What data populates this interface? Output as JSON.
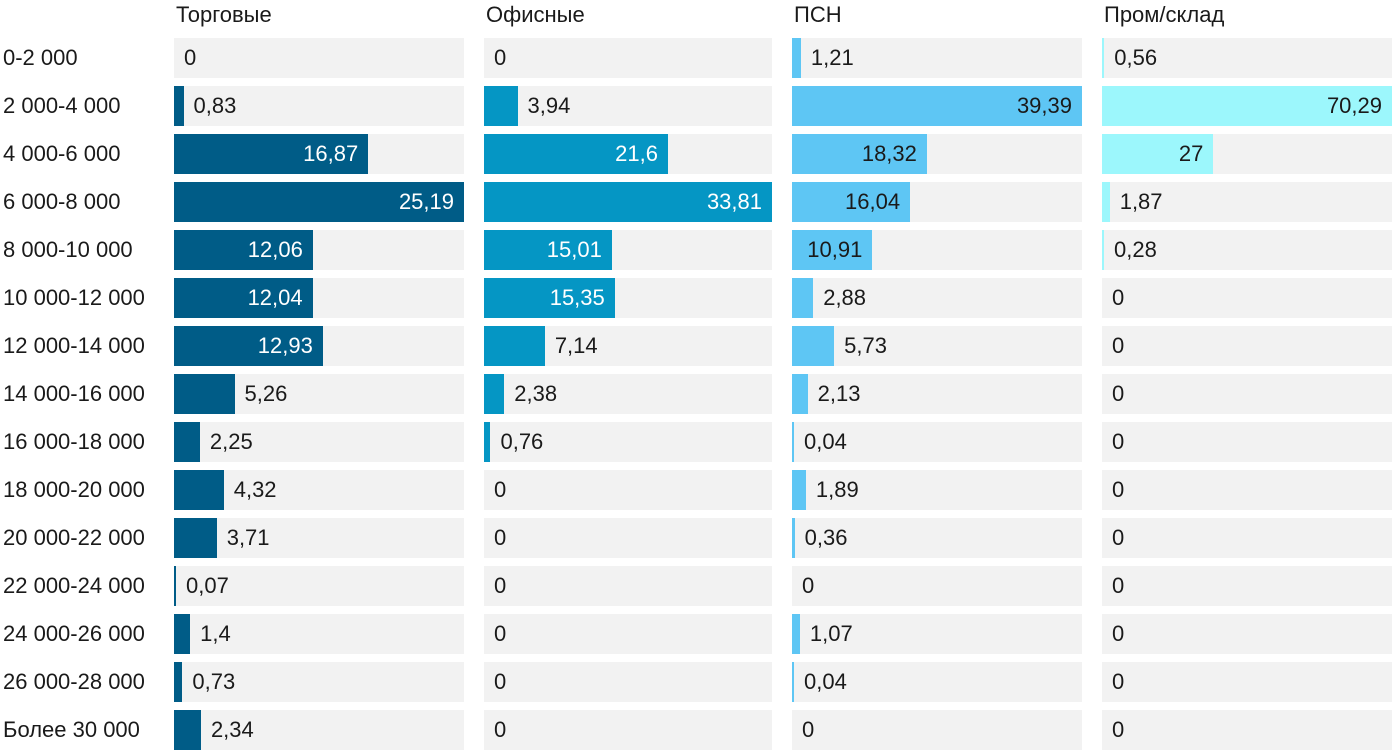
{
  "chart_data": {
    "type": "bar",
    "orientation": "horizontal",
    "layout": "small-multiples",
    "categories": [
      "0-2 000",
      "2 000-4 000",
      "4 000-6 000",
      "6 000-8 000",
      "8 000-10 000",
      "10 000-12 000",
      "12 000-14 000",
      "14 000-16 000",
      "16 000-18 000",
      "18 000-20 000",
      "20 000-22 000",
      "22 000-24 000",
      "24 000-26 000",
      "26 000-28 000",
      "Более 30 000"
    ],
    "series": [
      {
        "name": "Торговые",
        "color": "#005c87",
        "label_color_inside": "#ffffff",
        "values": [
          0,
          0.83,
          16.87,
          25.19,
          12.06,
          12.04,
          12.93,
          5.26,
          2.25,
          4.32,
          3.71,
          0.07,
          1.4,
          0.73,
          2.34
        ],
        "labels": [
          "0",
          "0,83",
          "16,87",
          "25,19",
          "12,06",
          "12,04",
          "12,93",
          "5,26",
          "2,25",
          "4,32",
          "3,71",
          "0,07",
          "1,4",
          "0,73",
          "2,34"
        ]
      },
      {
        "name": "Офисные",
        "color": "#0596c4",
        "label_color_inside": "#ffffff",
        "values": [
          0,
          3.94,
          21.6,
          33.81,
          15.01,
          15.35,
          7.14,
          2.38,
          0.76,
          0,
          0,
          0,
          0,
          0,
          0
        ],
        "labels": [
          "0",
          "3,94",
          "21,6",
          "33,81",
          "15,01",
          "15,35",
          "7,14",
          "2,38",
          "0,76",
          "0",
          "0",
          "0",
          "0",
          "0",
          "0"
        ]
      },
      {
        "name": "ПСН",
        "color": "#5ec6f4",
        "label_color_inside": "#1a1a1a",
        "values": [
          1.21,
          39.39,
          18.32,
          16.04,
          10.91,
          2.88,
          5.73,
          2.13,
          0.04,
          1.89,
          0.36,
          0,
          1.07,
          0.04,
          0
        ],
        "labels": [
          "1,21",
          "39,39",
          "18,32",
          "16,04",
          "10,91",
          "2,88",
          "5,73",
          "2,13",
          "0,04",
          "1,89",
          "0,36",
          "0",
          "1,07",
          "0,04",
          "0"
        ]
      },
      {
        "name": "Пром/склад",
        "color": "#9cf7fc",
        "label_color_inside": "#1a1a1a",
        "values": [
          0.56,
          70.29,
          27,
          1.87,
          0.28,
          0,
          0,
          0,
          0,
          0,
          0,
          0,
          0,
          0,
          0
        ],
        "labels": [
          "0,56",
          "70,29",
          "27",
          "1,87",
          "0,28",
          "0",
          "0",
          "0",
          "0",
          "0",
          "0",
          "0",
          "0",
          "0",
          "0"
        ]
      }
    ],
    "track_color": "#f2f2f2",
    "label_color_outside": "#1a1a1a",
    "grid": false,
    "legend": "none"
  }
}
